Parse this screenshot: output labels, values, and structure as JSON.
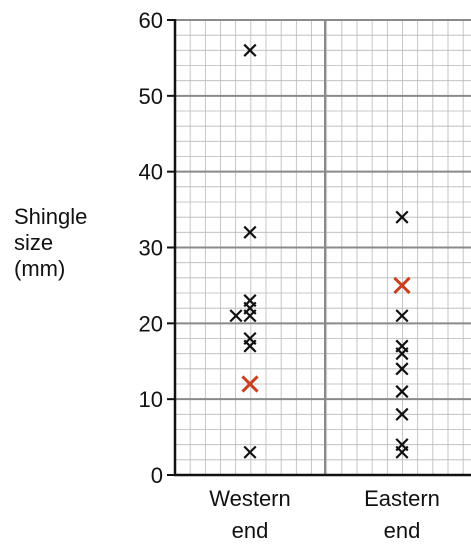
{
  "chart_data": {
    "type": "scatter",
    "title": "",
    "ylabel_lines": [
      "Shingle",
      "size",
      "(mm)"
    ],
    "categories": [
      {
        "lines": [
          "Western",
          "end"
        ]
      },
      {
        "lines": [
          "Eastern",
          "end"
        ]
      }
    ],
    "ylim": [
      0,
      60
    ],
    "yticks": [
      0,
      10,
      20,
      30,
      40,
      50,
      60
    ],
    "grid": true,
    "marker": "x",
    "colors": {
      "point": "#111111",
      "highlight": "#cc3f1e",
      "grid_minor": "#b8b8b8",
      "grid_major": "#8a8a8a",
      "axis": "#111111"
    },
    "series": [
      {
        "category": "Western end",
        "values": [
          56,
          32,
          23,
          22,
          21,
          21,
          18,
          17,
          3
        ],
        "highlight": [
          12
        ]
      },
      {
        "category": "Eastern end",
        "values": [
          34,
          21,
          17,
          16,
          14,
          11,
          8,
          4,
          3
        ],
        "highlight": [
          25
        ]
      }
    ]
  }
}
